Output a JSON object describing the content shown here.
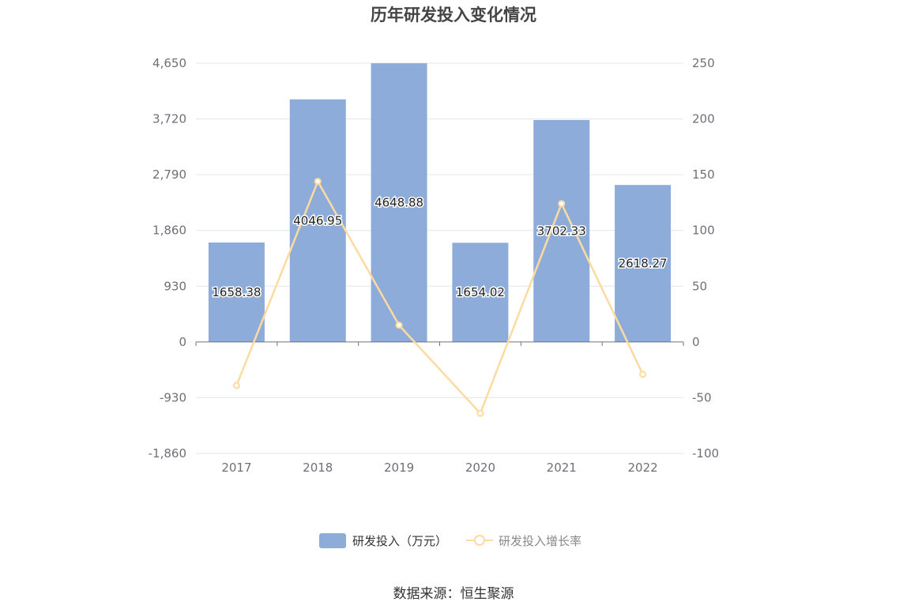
{
  "chart_data": {
    "type": "bar",
    "title": "历年研发投入变化情况",
    "categories": [
      "2017",
      "2018",
      "2019",
      "2020",
      "2021",
      "2022"
    ],
    "series": [
      {
        "name": "研发投入（万元）",
        "type": "bar",
        "axis": "left",
        "color": "#8eacd9",
        "values": [
          1658.38,
          4046.95,
          4648.88,
          1654.02,
          3702.33,
          2618.27
        ],
        "labels": [
          "1658.38",
          "4046.95",
          "4648.88",
          "1654.02",
          "3702.33",
          "2618.27"
        ]
      },
      {
        "name": "研发投入增长率",
        "type": "line",
        "axis": "right",
        "color": "#fddba0",
        "values": [
          -39,
          144,
          15,
          -64,
          124,
          -29
        ]
      }
    ],
    "y_left": {
      "ylim": [
        -1860,
        4650
      ],
      "ticks": [
        -1860,
        -930,
        0,
        930,
        1860,
        2790,
        3720,
        4650
      ],
      "tick_labels": [
        "-1,860",
        "-930",
        "0",
        "930",
        "1,860",
        "2,790",
        "3,720",
        "4,650"
      ]
    },
    "y_right": {
      "ylim": [
        -100,
        250
      ],
      "ticks": [
        -100,
        -50,
        0,
        50,
        100,
        150,
        200,
        250
      ],
      "tick_labels": [
        "-100",
        "-50",
        "0",
        "50",
        "100",
        "150",
        "200",
        "250"
      ]
    },
    "grid": true,
    "legend_position": "bottom"
  },
  "source_text": "数据来源：恒生聚源"
}
